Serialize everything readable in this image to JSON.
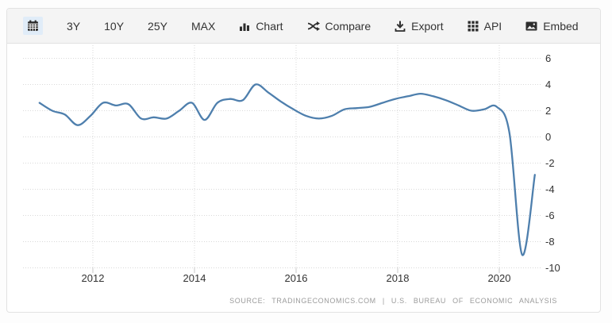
{
  "toolbar": {
    "range_buttons": [
      "3Y",
      "10Y",
      "25Y",
      "MAX"
    ],
    "actions": [
      {
        "icon": "bar-chart-icon",
        "label": "Chart"
      },
      {
        "icon": "shuffle-icon",
        "label": "Compare"
      },
      {
        "icon": "download-icon",
        "label": "Export"
      },
      {
        "icon": "grid-icon",
        "label": "API"
      },
      {
        "icon": "image-icon",
        "label": "Embed"
      }
    ]
  },
  "source_attribution": "SOURCE: TRADINGECONOMICS.COM | U.S. BUREAU OF ECONOMIC ANALYSIS",
  "chart_data": {
    "type": "line",
    "x_quarters": [
      "2010-Q4",
      "2011-Q1",
      "2011-Q2",
      "2011-Q3",
      "2011-Q4",
      "2012-Q1",
      "2012-Q2",
      "2012-Q3",
      "2012-Q4",
      "2013-Q1",
      "2013-Q2",
      "2013-Q3",
      "2013-Q4",
      "2014-Q1",
      "2014-Q2",
      "2014-Q3",
      "2014-Q4",
      "2015-Q1",
      "2015-Q2",
      "2015-Q3",
      "2015-Q4",
      "2016-Q1",
      "2016-Q2",
      "2016-Q3",
      "2016-Q4",
      "2017-Q1",
      "2017-Q2",
      "2017-Q3",
      "2017-Q4",
      "2018-Q1",
      "2018-Q2",
      "2018-Q3",
      "2018-Q4",
      "2019-Q1",
      "2019-Q2",
      "2019-Q3",
      "2019-Q4",
      "2020-Q1",
      "2020-Q2",
      "2020-Q3"
    ],
    "values": [
      2.6,
      2.0,
      1.7,
      0.9,
      1.6,
      2.6,
      2.4,
      2.5,
      1.4,
      1.5,
      1.4,
      2.0,
      2.6,
      1.3,
      2.6,
      2.9,
      2.8,
      4.0,
      3.4,
      2.7,
      2.1,
      1.6,
      1.4,
      1.6,
      2.1,
      2.2,
      2.3,
      2.6,
      2.9,
      3.1,
      3.3,
      3.1,
      2.8,
      2.4,
      2.0,
      2.1,
      2.3,
      0.3,
      -9.0,
      -2.9
    ],
    "x_start_year": 2010.95,
    "x_step_years": 0.25,
    "xticks": [
      2012,
      2014,
      2016,
      2018,
      2020
    ],
    "ylim": [
      -10,
      6
    ],
    "ytick_step": 2,
    "grid": "dotted",
    "legend": "none",
    "line_color": "#4e7fad",
    "grid_color": "#d9d9d9",
    "axis_text_color": "#333333"
  }
}
